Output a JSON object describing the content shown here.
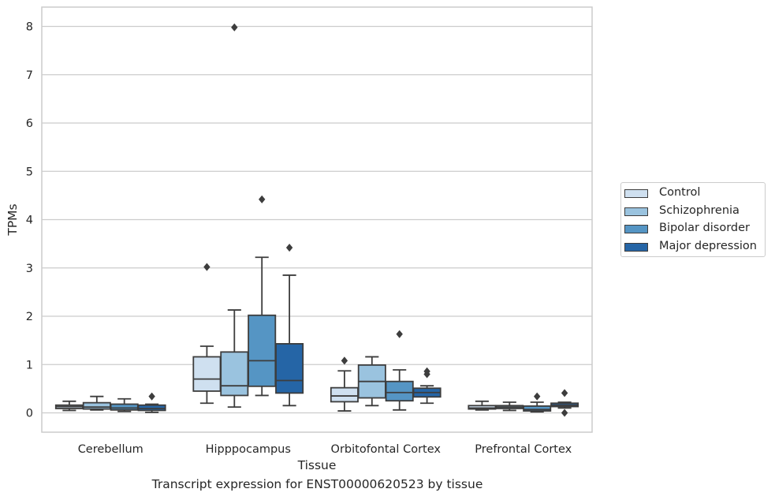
{
  "chart_data": {
    "type": "box",
    "xlabel": "Tissue",
    "ylabel": "TPMs",
    "caption": "Transcript expression for ENST00000620523 by tissue",
    "categories": [
      "Cerebellum",
      "Hipppocampus",
      "Orbitofontal Cortex",
      "Prefrontal Cortex"
    ],
    "ylim": [
      -0.4,
      8.4
    ],
    "yticks": [
      0,
      1,
      2,
      3,
      4,
      5,
      6,
      7,
      8
    ],
    "grid": true,
    "legend_position": "right",
    "series": [
      {
        "name": "Control",
        "color": "#cfe0f0",
        "boxes": [
          {
            "whislo": 0.05,
            "q1": 0.09,
            "med": 0.13,
            "q3": 0.16,
            "whishi": 0.24,
            "fliers": []
          },
          {
            "whislo": 0.2,
            "q1": 0.45,
            "med": 0.7,
            "q3": 1.16,
            "whishi": 1.38,
            "fliers": [
              3.02
            ]
          },
          {
            "whislo": 0.04,
            "q1": 0.23,
            "med": 0.35,
            "q3": 0.52,
            "whishi": 0.87,
            "fliers": [
              1.08
            ]
          },
          {
            "whislo": 0.06,
            "q1": 0.08,
            "med": 0.1,
            "q3": 0.15,
            "whishi": 0.24,
            "fliers": []
          }
        ]
      },
      {
        "name": "Schizophrenia",
        "color": "#9ac3df",
        "boxes": [
          {
            "whislo": 0.06,
            "q1": 0.08,
            "med": 0.12,
            "q3": 0.21,
            "whishi": 0.34,
            "fliers": []
          },
          {
            "whislo": 0.12,
            "q1": 0.36,
            "med": 0.56,
            "q3": 1.26,
            "whishi": 2.13,
            "fliers": [
              7.98
            ]
          },
          {
            "whislo": 0.15,
            "q1": 0.31,
            "med": 0.65,
            "q3": 0.99,
            "whishi": 1.16,
            "fliers": []
          },
          {
            "whislo": 0.05,
            "q1": 0.09,
            "med": 0.12,
            "q3": 0.15,
            "whishi": 0.22,
            "fliers": []
          }
        ]
      },
      {
        "name": "Bipolar disorder",
        "color": "#5595c4",
        "boxes": [
          {
            "whislo": 0.03,
            "q1": 0.06,
            "med": 0.1,
            "q3": 0.18,
            "whishi": 0.29,
            "fliers": []
          },
          {
            "whislo": 0.36,
            "q1": 0.55,
            "med": 1.08,
            "q3": 2.02,
            "whishi": 3.22,
            "fliers": [
              4.42
            ]
          },
          {
            "whislo": 0.06,
            "q1": 0.25,
            "med": 0.42,
            "q3": 0.65,
            "whishi": 0.89,
            "fliers": [
              1.63
            ]
          },
          {
            "whislo": 0.02,
            "q1": 0.04,
            "med": 0.07,
            "q3": 0.14,
            "whishi": 0.22,
            "fliers": [
              0.34
            ]
          }
        ]
      },
      {
        "name": "Major depression",
        "color": "#2565a6",
        "boxes": [
          {
            "whislo": 0.01,
            "q1": 0.05,
            "med": 0.09,
            "q3": 0.16,
            "whishi": 0.18,
            "fliers": [
              0.34
            ]
          },
          {
            "whislo": 0.15,
            "q1": 0.41,
            "med": 0.67,
            "q3": 1.43,
            "whishi": 2.85,
            "fliers": [
              3.42
            ]
          },
          {
            "whislo": 0.2,
            "q1": 0.33,
            "med": 0.42,
            "q3": 0.51,
            "whishi": 0.56,
            "fliers": [
              0.8,
              0.86
            ]
          },
          {
            "whislo": 0.1,
            "q1": 0.13,
            "med": 0.16,
            "q3": 0.2,
            "whishi": 0.22,
            "fliers": [
              0.41,
              0.0
            ]
          }
        ]
      }
    ]
  }
}
